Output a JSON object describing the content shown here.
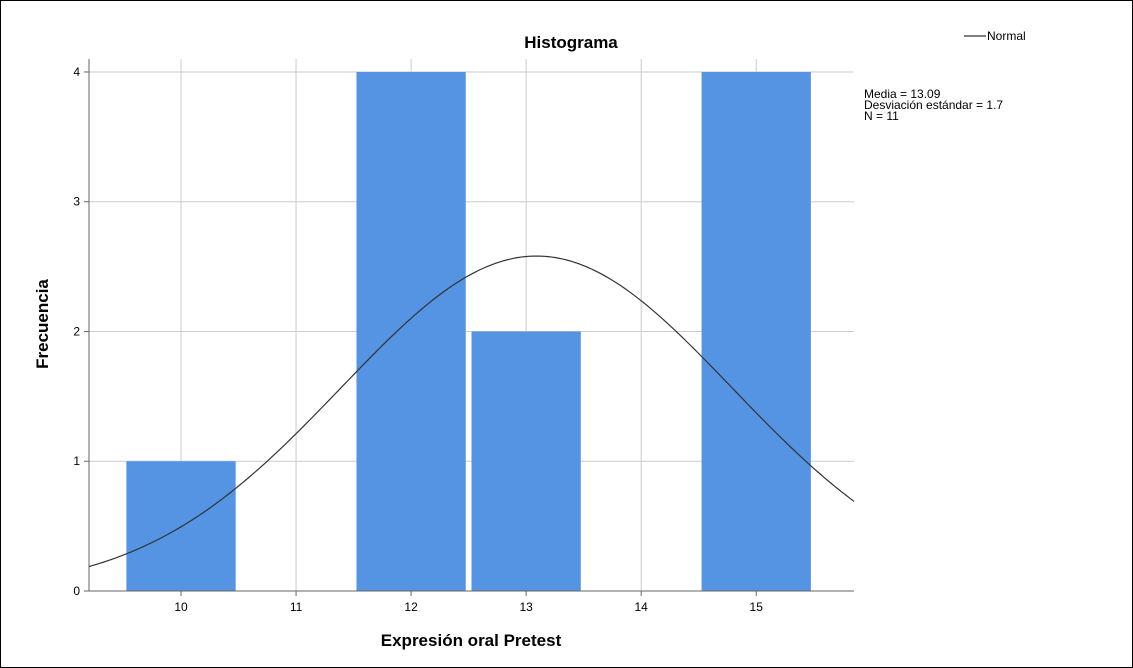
{
  "chart_data": {
    "type": "bar",
    "subtype": "histogram",
    "title": "Histograma",
    "xlabel": "Expresión oral Pretest",
    "ylabel": "Frecuencia",
    "categories": [
      "10",
      "11",
      "12",
      "13",
      "14",
      "15"
    ],
    "values": [
      1,
      0,
      4,
      2,
      0,
      4
    ],
    "xlim": [
      9.2,
      15.85
    ],
    "ylim": [
      0,
      4.1
    ],
    "x_ticks": [
      "10",
      "11",
      "12",
      "13",
      "14",
      "15"
    ],
    "y_ticks": [
      "0",
      "1",
      "2",
      "3",
      "4"
    ],
    "grid": true,
    "bar_color": "#5593e3",
    "normal_curve": {
      "legend_label": "Normal",
      "mean": 13.09,
      "std": 1.7,
      "n": 11,
      "bin_width": 1,
      "color": "#333333"
    },
    "stats": [
      "Media = 13.09",
      "Desviación estándar = 1.7",
      "N = 11"
    ],
    "legend_position": "top-right"
  }
}
